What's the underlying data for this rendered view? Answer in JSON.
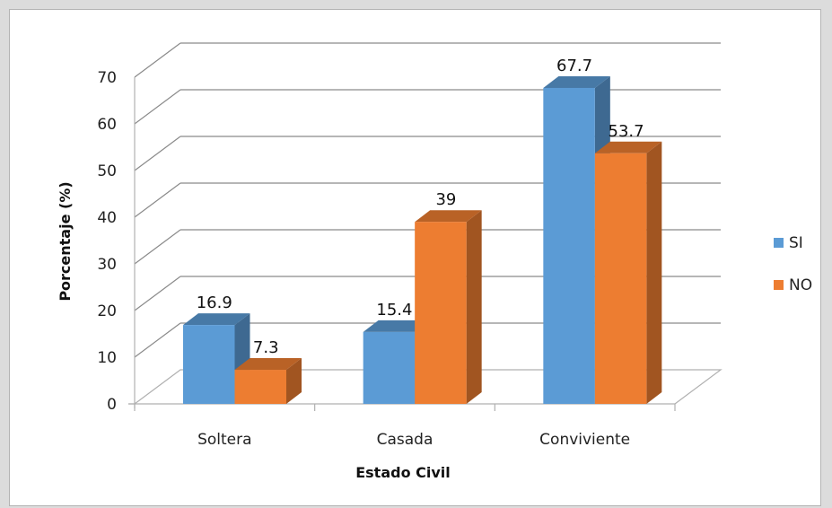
{
  "chart_data": {
    "type": "bar",
    "style": "3d-clustered-column",
    "categories": [
      "Soltera",
      "Casada",
      "Conviviente"
    ],
    "series": [
      {
        "name": "SI",
        "values": [
          16.9,
          15.4,
          67.7
        ],
        "color": "#5b9bd5"
      },
      {
        "name": "NO",
        "values": [
          7.3,
          39,
          53.7
        ],
        "color": "#ed7d31"
      }
    ],
    "xlabel": "Estado Civil",
    "ylabel": "Porcentaje (%)",
    "ylim": [
      0,
      70
    ],
    "yticks": [
      0,
      10,
      20,
      30,
      40,
      50,
      60,
      70
    ],
    "grid": true,
    "legend_position": "right"
  }
}
